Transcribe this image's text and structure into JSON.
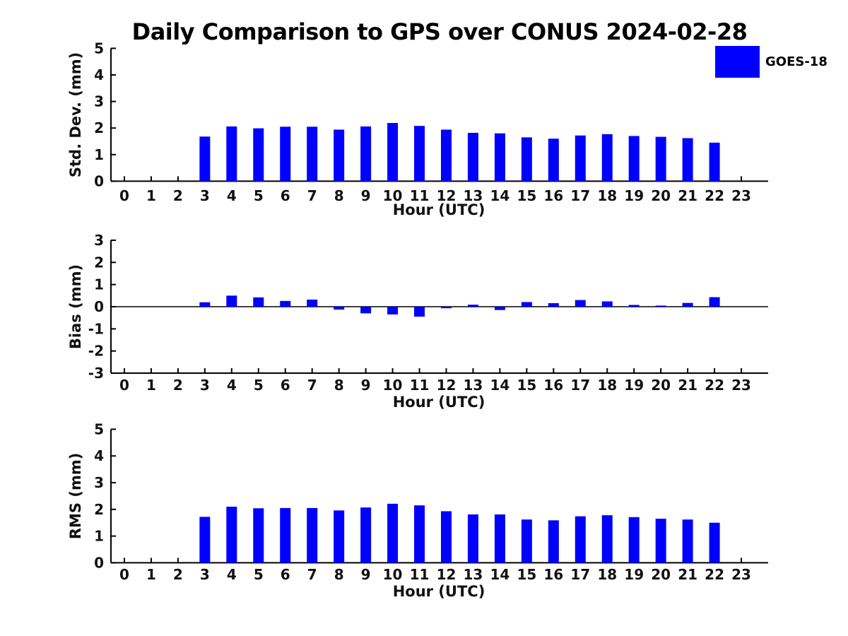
{
  "title": "Daily Comparison to GPS over CONUS 2024-02-28",
  "legend": {
    "label": "GOES-18",
    "swatch_color": "#0000ff"
  },
  "colors": {
    "bar": "#0000ff",
    "axis": "#000000",
    "text": "#111111"
  },
  "chart_data": [
    {
      "type": "bar",
      "ylabel": "Std. Dev. (mm)",
      "xlabel": "Hour (UTC)",
      "categories": [
        0,
        1,
        2,
        3,
        4,
        5,
        6,
        7,
        8,
        9,
        10,
        11,
        12,
        13,
        14,
        15,
        16,
        17,
        18,
        19,
        20,
        21,
        22,
        23
      ],
      "series": [
        {
          "name": "GOES-18",
          "color": "#0000ff",
          "values": [
            null,
            null,
            null,
            1.68,
            2.06,
            1.99,
            2.05,
            2.05,
            1.94,
            2.06,
            2.19,
            2.08,
            1.94,
            1.82,
            1.8,
            1.65,
            1.6,
            1.72,
            1.77,
            1.7,
            1.67,
            1.62,
            1.45,
            null
          ]
        }
      ],
      "ylim": [
        0,
        5
      ],
      "yticks": [
        0,
        1,
        2,
        3,
        4,
        5
      ],
      "grid": false,
      "zero_line": false,
      "legend_position": "upper right of figure"
    },
    {
      "type": "bar",
      "ylabel": "Bias (mm)",
      "xlabel": "Hour (UTC)",
      "categories": [
        0,
        1,
        2,
        3,
        4,
        5,
        6,
        7,
        8,
        9,
        10,
        11,
        12,
        13,
        14,
        15,
        16,
        17,
        18,
        19,
        20,
        21,
        22,
        23
      ],
      "series": [
        {
          "name": "GOES-18",
          "color": "#0000ff",
          "values": [
            null,
            null,
            null,
            0.2,
            0.5,
            0.42,
            0.26,
            0.32,
            -0.13,
            -0.3,
            -0.35,
            -0.45,
            -0.07,
            0.09,
            -0.15,
            0.21,
            0.16,
            0.3,
            0.24,
            0.08,
            0.05,
            0.17,
            0.43,
            null
          ]
        }
      ],
      "ylim": [
        -3,
        3
      ],
      "yticks": [
        -3,
        -2,
        -1,
        0,
        1,
        2,
        3
      ],
      "grid": false,
      "zero_line": true,
      "legend_position": "none"
    },
    {
      "type": "bar",
      "ylabel": "RMS (mm)",
      "xlabel": "Hour (UTC)",
      "categories": [
        0,
        1,
        2,
        3,
        4,
        5,
        6,
        7,
        8,
        9,
        10,
        11,
        12,
        13,
        14,
        15,
        16,
        17,
        18,
        19,
        20,
        21,
        22,
        23
      ],
      "series": [
        {
          "name": "GOES-18",
          "color": "#0000ff",
          "values": [
            null,
            null,
            null,
            1.72,
            2.1,
            2.04,
            2.05,
            2.05,
            1.96,
            2.07,
            2.21,
            2.15,
            1.93,
            1.81,
            1.81,
            1.62,
            1.59,
            1.74,
            1.78,
            1.71,
            1.65,
            1.62,
            1.5,
            null
          ]
        }
      ],
      "ylim": [
        0,
        5
      ],
      "yticks": [
        0,
        1,
        2,
        3,
        4,
        5
      ],
      "grid": false,
      "zero_line": false,
      "legend_position": "none"
    }
  ]
}
